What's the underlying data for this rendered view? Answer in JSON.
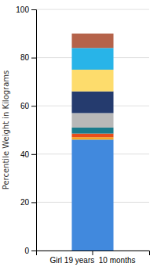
{
  "chart_data": {
    "type": "bar",
    "categories": [
      "Girl 19 years  10 months"
    ],
    "y_label": "Percentile Weight in Kilograms",
    "series": [
      {
        "color": "#4189DD",
        "values": [
          46
        ]
      },
      {
        "color": "#F5A623",
        "values": [
          1.0
        ]
      },
      {
        "color": "#E84E1B",
        "values": [
          1.5
        ]
      },
      {
        "color": "#1A7B8C",
        "values": [
          2.5
        ]
      },
      {
        "color": "#B8B8B8",
        "values": [
          6
        ]
      },
      {
        "color": "#253B6E",
        "values": [
          9
        ]
      },
      {
        "color": "#FDDC6C",
        "values": [
          9
        ]
      },
      {
        "color": "#28B4E8",
        "values": [
          9
        ]
      },
      {
        "color": "#B5634A",
        "values": [
          6
        ]
      }
    ],
    "stacked": true,
    "ylim": [
      0,
      100
    ],
    "yticks": [
      0,
      20,
      40,
      60,
      80,
      100
    ],
    "grid": true
  }
}
